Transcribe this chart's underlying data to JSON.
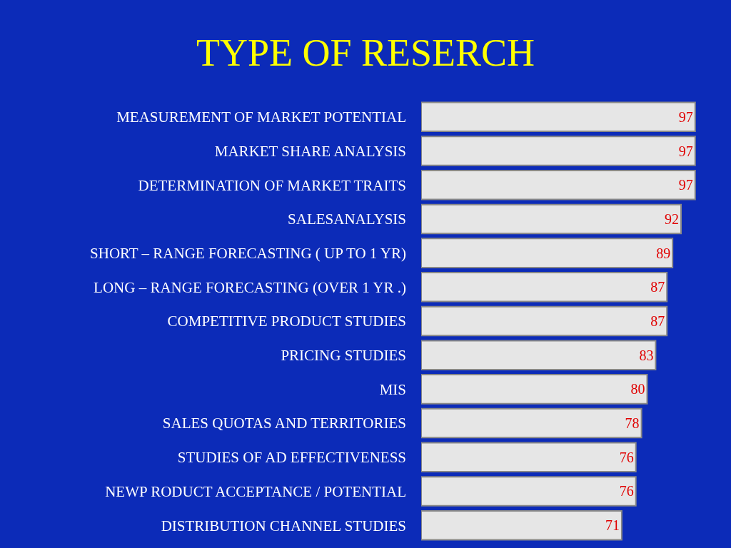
{
  "chart_data": {
    "type": "bar",
    "title": "TYPE OF RESERCH",
    "orientation": "horizontal",
    "categories": [
      "MEASUREMENT OF MARKET POTENTIAL",
      "MARKET SHARE ANALYSIS",
      "DETERMINATION OF MARKET TRAITS",
      "SALESANALYSIS",
      "SHORT – RANGE FORECASTING ( UP TO 1 YR)",
      "LONG – RANGE FORECASTING (OVER 1 YR .)",
      "COMPETITIVE PRODUCT STUDIES",
      "PRICING STUDIES",
      "MIS",
      "SALES QUOTAS AND TERRITORIES",
      "STUDIES OF AD EFFECTIVENESS",
      "NEWP RODUCT ACCEPTANCE / POTENTIAL",
      "DISTRIBUTION CHANNEL STUDIES"
    ],
    "values": [
      97,
      97,
      97,
      92,
      89,
      87,
      87,
      83,
      80,
      78,
      76,
      76,
      71
    ],
    "color": "#e6e6e6",
    "data_labels": true,
    "grid": false,
    "legend": false
  }
}
